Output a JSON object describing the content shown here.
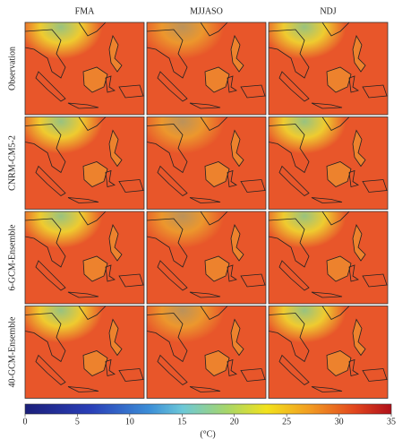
{
  "columns": [
    "FMA",
    "MJJASO",
    "NDJ"
  ],
  "rows": [
    "Observation",
    "CNRM-CM5-2",
    "6-GCM-Ensemble",
    "40-GCM-Ensemble"
  ],
  "colorbar": {
    "lim": [
      0,
      35
    ],
    "ticks": [
      0,
      5,
      10,
      15,
      20,
      25,
      30,
      35
    ],
    "label": "(°C)"
  }
}
